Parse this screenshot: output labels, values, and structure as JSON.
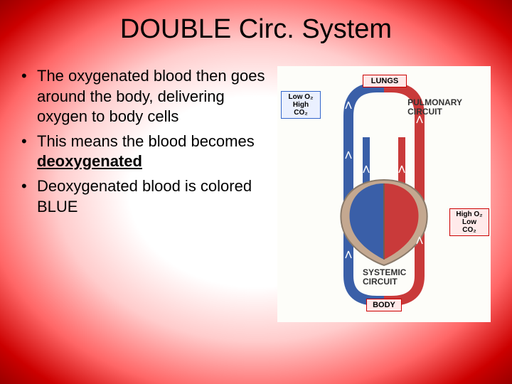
{
  "title": "DOUBLE Circ. System",
  "bullets": {
    "b1a": "The oxygenated blood then goes around the body, delivering oxygen to body cells",
    "b2a": "This means the blood becomes ",
    "b2b": "deoxygenated",
    "b3a": "Deoxygenated blood is colored BLUE"
  },
  "diagram": {
    "lungs": "LUNGS",
    "body": "BODY",
    "low_o2_line1": "Low O₂",
    "low_o2_line2": "High CO₂",
    "high_o2_line1": "High O₂",
    "high_o2_line2": "Low CO₂",
    "pulmonary": "PULMONARY CIRCUIT",
    "systemic": "SYSTEMIC CIRCUIT",
    "colors": {
      "oxygenated": "#c93a3a",
      "deoxygenated": "#3a5fa8",
      "heart_outline": "#8a7a6a",
      "heart_fill": "#c4a890"
    }
  }
}
